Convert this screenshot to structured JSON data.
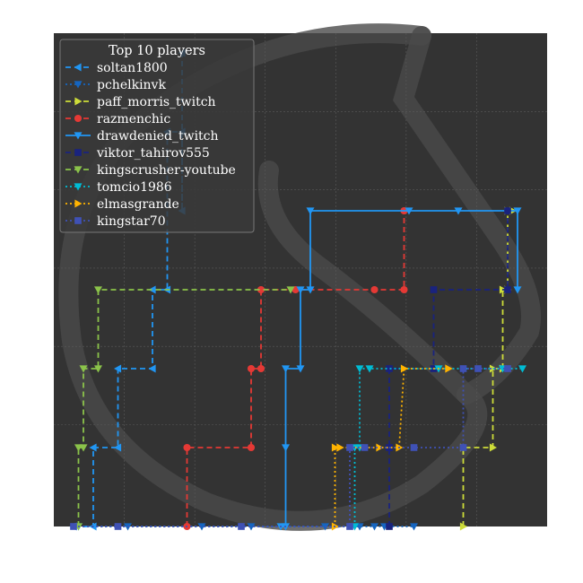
{
  "chart_data": {
    "type": "line",
    "legend_title": "Top 10 players",
    "legend_position": "top-left",
    "grid": true,
    "xlim": [
      0,
      100
    ],
    "ylim": [
      0,
      100
    ],
    "background": "#333333",
    "series": [
      {
        "name": "soltan1800",
        "color": "#2196f3",
        "dash": "6,4",
        "marker": "tri-left",
        "points": [
          [
            4,
            0
          ],
          [
            8,
            0
          ],
          [
            8,
            16
          ],
          [
            13,
            16
          ],
          [
            13,
            32
          ],
          [
            20,
            32
          ],
          [
            20,
            48
          ],
          [
            23,
            48
          ],
          [
            23,
            80
          ],
          [
            26,
            80
          ],
          [
            26,
            64
          ],
          [
            26,
            96
          ]
        ]
      },
      {
        "name": "pchelkinvk",
        "color": "#1565c0",
        "dash": "2,3",
        "marker": "tri-down",
        "points": [
          [
            5,
            0
          ],
          [
            15,
            0
          ],
          [
            30,
            0
          ],
          [
            40,
            0
          ],
          [
            55,
            0
          ],
          [
            62,
            0
          ],
          [
            65,
            0
          ],
          [
            67,
            0
          ],
          [
            73,
            0
          ]
        ]
      },
      {
        "name": "paff_morris_twitch",
        "color": "#cddc39",
        "dash": "6,4",
        "marker": "tri-right",
        "points": [
          [
            83,
            0
          ],
          [
            83,
            16
          ],
          [
            89,
            16
          ],
          [
            89,
            32
          ],
          [
            91,
            32
          ],
          [
            91,
            48
          ],
          [
            92,
            48
          ],
          [
            92,
            64
          ],
          [
            93,
            64
          ]
        ]
      },
      {
        "name": "razmenchic",
        "color": "#e53935",
        "dash": "6,4",
        "marker": "circle",
        "points": [
          [
            27,
            0
          ],
          [
            27,
            16
          ],
          [
            40,
            16
          ],
          [
            40,
            32
          ],
          [
            42,
            32
          ],
          [
            42,
            48
          ],
          [
            49,
            48
          ],
          [
            65,
            48
          ],
          [
            71,
            48
          ],
          [
            71,
            64
          ]
        ]
      },
      {
        "name": "drawdenied_twitch",
        "color": "#2196f3",
        "dash": "",
        "marker": "tri-down",
        "points": [
          [
            46,
            0
          ],
          [
            47,
            0
          ],
          [
            47,
            16
          ],
          [
            47,
            32
          ],
          [
            50,
            32
          ],
          [
            50,
            48
          ],
          [
            52,
            48
          ],
          [
            52,
            64
          ],
          [
            72,
            64
          ],
          [
            82,
            64
          ],
          [
            94,
            64
          ],
          [
            94,
            48
          ]
        ]
      },
      {
        "name": "viktor_tahirov555",
        "color": "#1a237e",
        "dash": "6,4",
        "marker": "square",
        "points": [
          [
            68,
            0
          ],
          [
            68,
            16
          ],
          [
            68,
            32
          ],
          [
            77,
            32
          ],
          [
            77,
            48
          ],
          [
            92,
            48
          ],
          [
            92,
            64
          ]
        ]
      },
      {
        "name": "kingscrusher-youtube",
        "color": "#8bc34a",
        "dash": "6,4",
        "marker": "tri-down",
        "points": [
          [
            5,
            0
          ],
          [
            5,
            16
          ],
          [
            6,
            16
          ],
          [
            6,
            32
          ],
          [
            9,
            32
          ],
          [
            9,
            48
          ],
          [
            48,
            48
          ]
        ]
      },
      {
        "name": "tomcio1986",
        "color": "#00bcd4",
        "dash": "2,3",
        "marker": "tri-down",
        "points": [
          [
            61,
            0
          ],
          [
            61,
            16
          ],
          [
            62,
            16
          ],
          [
            62,
            32
          ],
          [
            64,
            32
          ],
          [
            78,
            32
          ],
          [
            91,
            32
          ],
          [
            95,
            32
          ]
        ]
      },
      {
        "name": "elmasgrande",
        "color": "#ffb300",
        "dash": "2,3",
        "marker": "tri-right",
        "points": [
          [
            57,
            0
          ],
          [
            57,
            16
          ],
          [
            58,
            16
          ],
          [
            58,
            16
          ],
          [
            66,
            16
          ],
          [
            70,
            16
          ],
          [
            71,
            32
          ],
          [
            80,
            32
          ],
          [
            80,
            32
          ]
        ]
      },
      {
        "name": "kingstar70",
        "color": "#3f51b5",
        "dash": "2,3",
        "marker": "square",
        "points": [
          [
            4,
            0
          ],
          [
            13,
            0
          ],
          [
            38,
            0
          ],
          [
            60,
            0
          ],
          [
            60,
            16
          ],
          [
            63,
            16
          ],
          [
            73,
            16
          ],
          [
            83,
            16
          ],
          [
            83,
            32
          ],
          [
            86,
            32
          ],
          [
            92,
            32
          ]
        ]
      }
    ]
  }
}
